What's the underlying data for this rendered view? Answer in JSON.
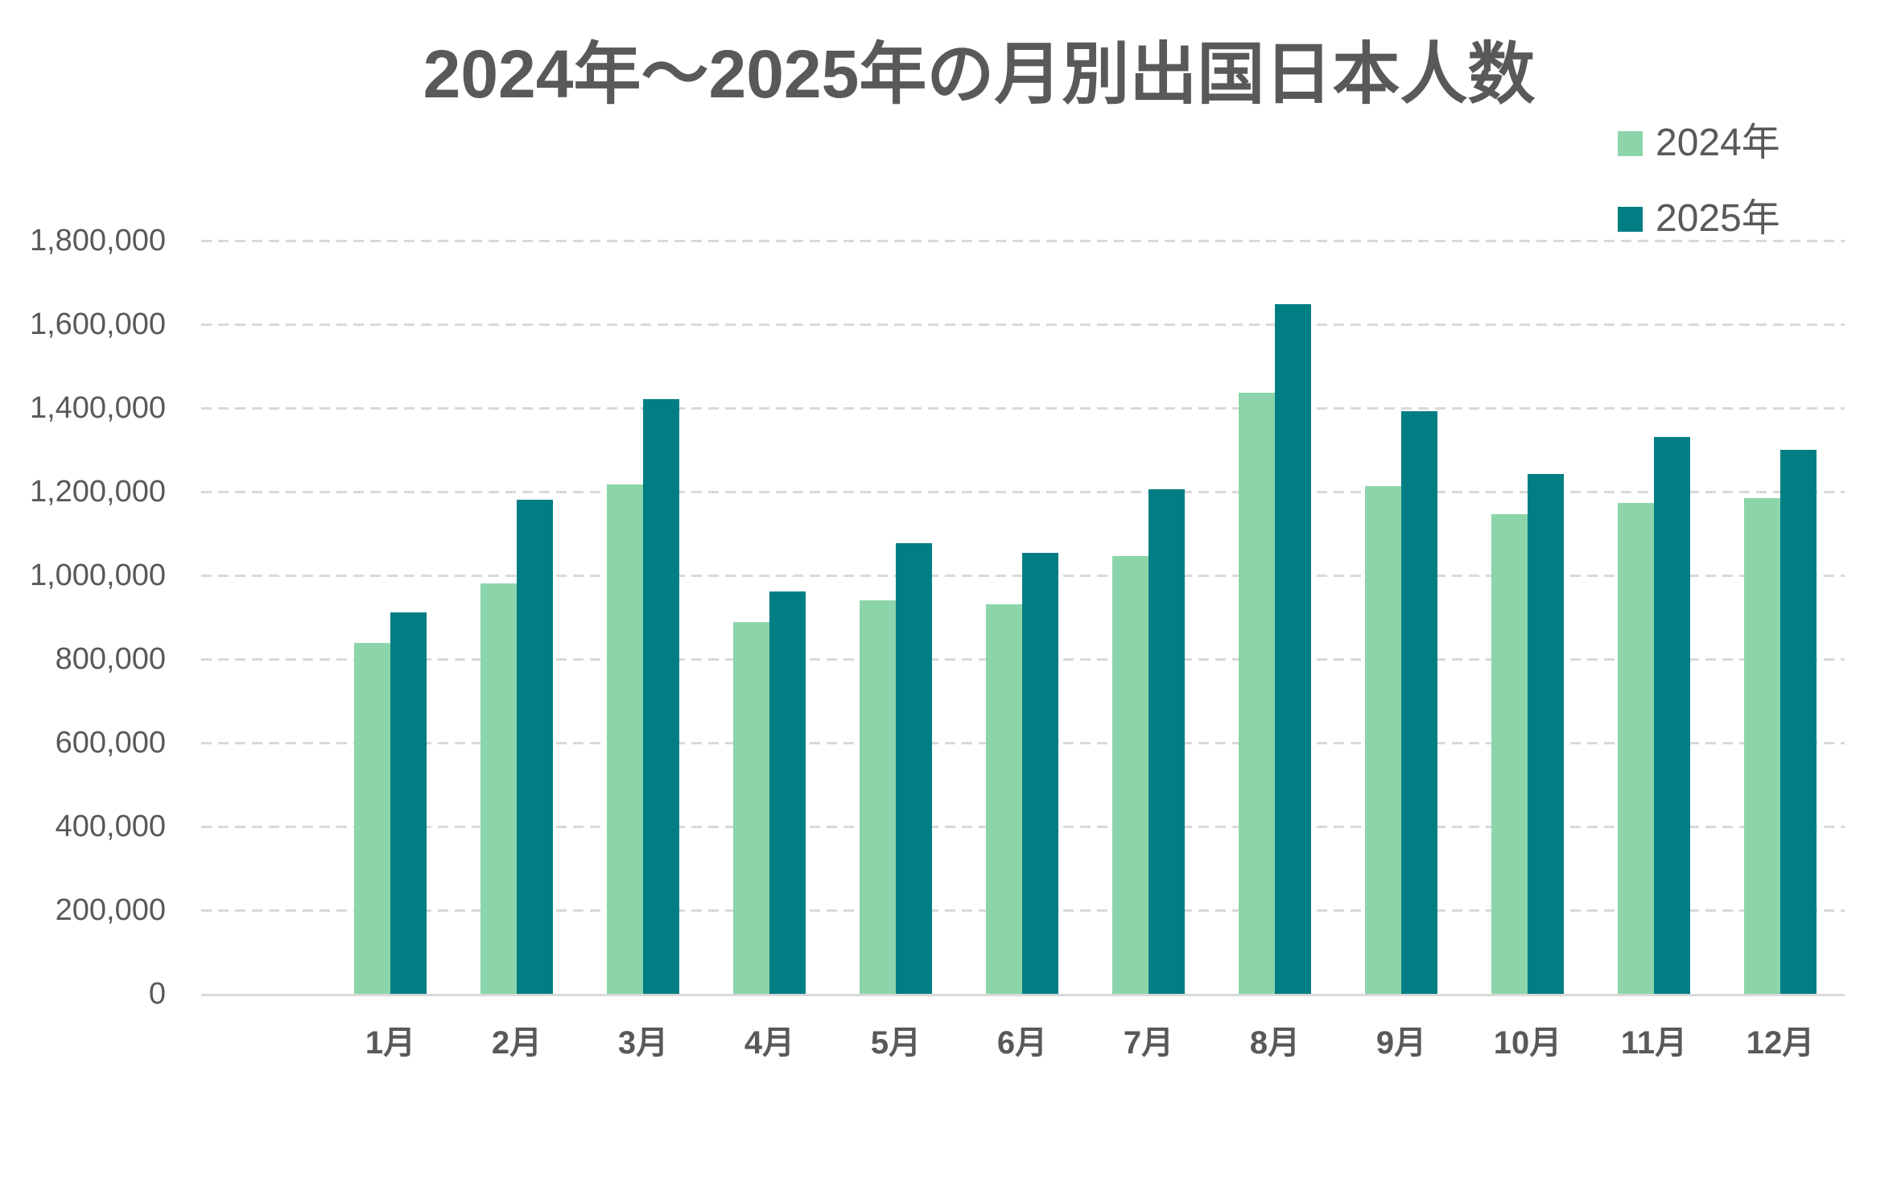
{
  "title": "2024年〜2025年の月別出国日本人数",
  "legend": {
    "items": [
      {
        "label": "2024年",
        "color": "#8cd5aa"
      },
      {
        "label": "2025年",
        "color": "#007e84"
      }
    ]
  },
  "y_axis": {
    "tick_labels": [
      "0",
      "200,000",
      "400,000",
      "600,000",
      "800,000",
      "1,000,000",
      "1,200,000",
      "1,400,000",
      "1,600,000",
      "1,800,000"
    ]
  },
  "chart_data": {
    "type": "bar",
    "title": "2024年〜2025年の月別出国日本人数",
    "categories": [
      "1月",
      "2月",
      "3月",
      "4月",
      "5月",
      "6月",
      "7月",
      "8月",
      "9月",
      "10月",
      "11月",
      "12月"
    ],
    "series": [
      {
        "name": "2024年",
        "color": "#8cd5aa",
        "values": [
          838000,
          980000,
          1217000,
          888000,
          940000,
          930000,
          1046000,
          1437000,
          1213000,
          1146000,
          1173000,
          1185000
        ]
      },
      {
        "name": "2025年",
        "color": "#007e84",
        "values": [
          912000,
          1180000,
          1421000,
          962000,
          1077000,
          1053000,
          1205000,
          1648000,
          1392000,
          1242000,
          1330000,
          1300000
        ]
      }
    ],
    "ylim": [
      0,
      1800000
    ],
    "ytick_step": 200000,
    "grid": "horizontal-dashed",
    "legend_position": "top-right"
  },
  "colors": {
    "text": "#595959",
    "gridline": "#d9d9d9",
    "axis_line": "#d9d9d9",
    "background": "#ffffff"
  }
}
